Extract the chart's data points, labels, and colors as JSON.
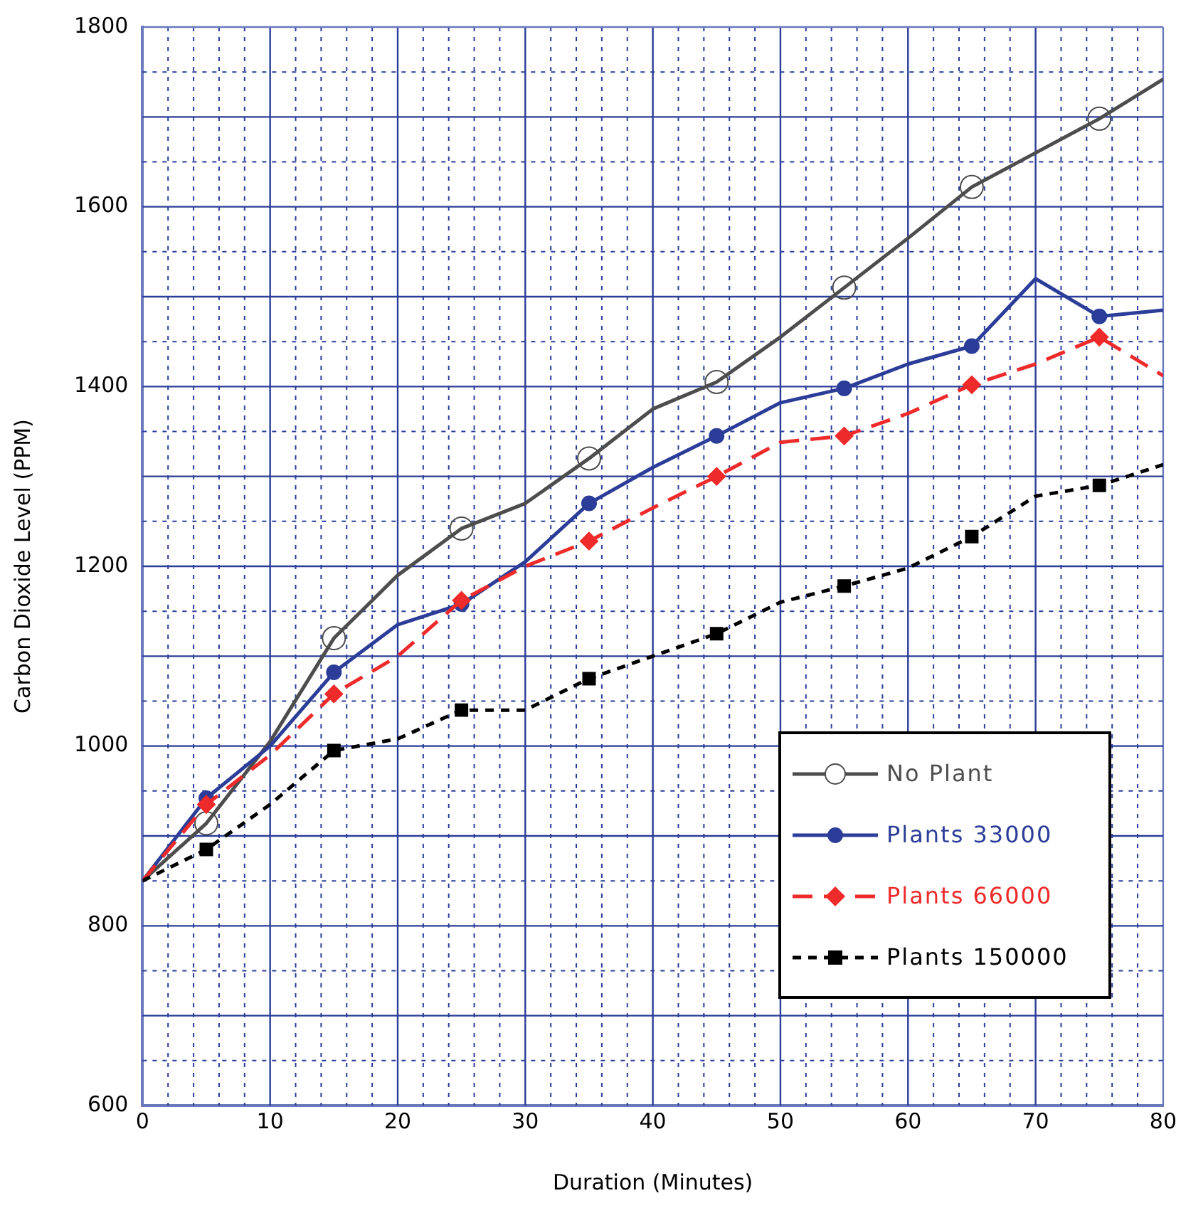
{
  "chart_data": {
    "type": "line",
    "xlabel": "Duration (Minutes)",
    "ylabel": "Carbon Dioxide Level (PPM)",
    "x": [
      0,
      5,
      10,
      15,
      20,
      25,
      30,
      35,
      40,
      45,
      50,
      55,
      60,
      65,
      70,
      75,
      80
    ],
    "xlim": [
      0,
      80
    ],
    "xticks": [
      0,
      {
        "value": 2,
        "label": null
      },
      {
        "value": 4,
        "label": null
      },
      {
        "value": 6,
        "label": null
      },
      {
        "value": 8,
        "label": null
      },
      10,
      {
        "value": 12,
        "label": null
      },
      {
        "value": 14,
        "label": null
      },
      {
        "value": 16,
        "label": null
      },
      {
        "value": 18,
        "label": null
      },
      20,
      {
        "value": 22,
        "label": null
      },
      {
        "value": 24,
        "label": null
      },
      {
        "value": 26,
        "label": null
      },
      {
        "value": 28,
        "label": null
      },
      30,
      {
        "value": 32,
        "label": null
      },
      {
        "value": 34,
        "label": null
      },
      {
        "value": 36,
        "label": null
      },
      {
        "value": 38,
        "label": null
      },
      40,
      {
        "value": 42,
        "label": null
      },
      {
        "value": 44,
        "label": null
      },
      {
        "value": 46,
        "label": null
      },
      {
        "value": 48,
        "label": null
      },
      50,
      {
        "value": 52,
        "label": null
      },
      {
        "value": 54,
        "label": null
      },
      {
        "value": 56,
        "label": null
      },
      {
        "value": 58,
        "label": null
      },
      60,
      {
        "value": 62,
        "label": null
      },
      {
        "value": 64,
        "label": null
      },
      {
        "value": 66,
        "label": null
      },
      {
        "value": 68,
        "label": null
      },
      70,
      {
        "value": 72,
        "label": null
      },
      {
        "value": 74,
        "label": null
      },
      {
        "value": 76,
        "label": null
      },
      {
        "value": 78,
        "label": null
      },
      80
    ],
    "ylim": [
      600,
      1800
    ],
    "yticks": [
      600,
      {
        "value": 650,
        "label": null
      },
      {
        "value": 700,
        "label": null
      },
      {
        "value": 750,
        "label": null
      },
      800,
      {
        "value": 850,
        "label": null
      },
      {
        "value": 900,
        "label": null
      },
      {
        "value": 950,
        "label": null
      },
      1000,
      {
        "value": 1050,
        "label": null
      },
      {
        "value": 1100,
        "label": null
      },
      {
        "value": 1150,
        "label": null
      },
      1200,
      {
        "value": 1250,
        "label": null
      },
      {
        "value": 1300,
        "label": null
      },
      {
        "value": 1350,
        "label": null
      },
      1400,
      {
        "value": 1450,
        "label": null
      },
      {
        "value": 1500,
        "label": null
      },
      {
        "value": 1550,
        "label": null
      },
      1600,
      {
        "value": 1650,
        "label": null
      },
      {
        "value": 1700,
        "label": null
      },
      {
        "value": 1750,
        "label": null
      },
      1800
    ],
    "grid": true,
    "legend": "bottom right",
    "series": [
      {
        "name": "No Plant",
        "color": "#4d4d4d",
        "marker": "none",
        "line_style": "solid",
        "values": [
          850,
          914,
          1005,
          1120,
          1190,
          1242,
          1270,
          1320,
          1375,
          1405,
          1455,
          1510,
          1565,
          1622,
          1660,
          1698,
          1742
        ]
      },
      {
        "type": "scatter",
        "color": "#4d4d4d",
        "marker": "circle",
        "x": [
          5,
          15,
          25,
          35,
          45,
          55,
          65,
          75
        ],
        "values": [
          914,
          1120,
          1242,
          1320,
          1405,
          1510,
          1622,
          1698
        ]
      },
      {
        "name": "Plants 33000",
        "color": "#2b3d98",
        "marker": "none",
        "line_style": "solid",
        "values": [
          850,
          942,
          1000,
          1082,
          1135,
          1158,
          1205,
          1270,
          1310,
          1345,
          1382,
          1398,
          1425,
          1445,
          1520,
          1478,
          1485
        ]
      },
      {
        "type": "scatter",
        "color": "#2b3d98",
        "marker": "circle",
        "x": [
          5,
          15,
          25,
          35,
          45,
          55,
          65,
          75
        ],
        "values": [
          942,
          1082,
          1158,
          1270,
          1345,
          1398,
          1445,
          1478
        ]
      },
      {
        "name": "Plants 66000",
        "color": "#ee2a2a",
        "marker": "none",
        "line_style": "dashed",
        "values": [
          850,
          935,
          990,
          1058,
          1100,
          1162,
          1200,
          1228,
          1265,
          1300,
          1338,
          1345,
          1370,
          1402,
          1425,
          1455,
          1412
        ]
      },
      {
        "type": "scatter",
        "color": "#ee2a2a",
        "marker": "diamond",
        "x": [
          5,
          15,
          25,
          35,
          45,
          55,
          65,
          75
        ],
        "values": [
          935,
          1058,
          1162,
          1228,
          1300,
          1345,
          1402,
          1455
        ]
      },
      {
        "name": "Plants 150000",
        "color": "#000000",
        "marker": "none",
        "line_style": "dotted",
        "values": [
          850,
          885,
          935,
          995,
          1008,
          1040,
          1040,
          1075,
          1100,
          1125,
          1160,
          1178,
          1198,
          1233,
          1278,
          1290,
          1313
        ]
      },
      {
        "type": "scatter",
        "color": "#000000",
        "marker": "square",
        "x": [
          5,
          15,
          25,
          35,
          45,
          55,
          65,
          75
        ],
        "values": [
          885,
          995,
          1040,
          1075,
          1125,
          1178,
          1233,
          1290
        ]
      }
    ]
  }
}
